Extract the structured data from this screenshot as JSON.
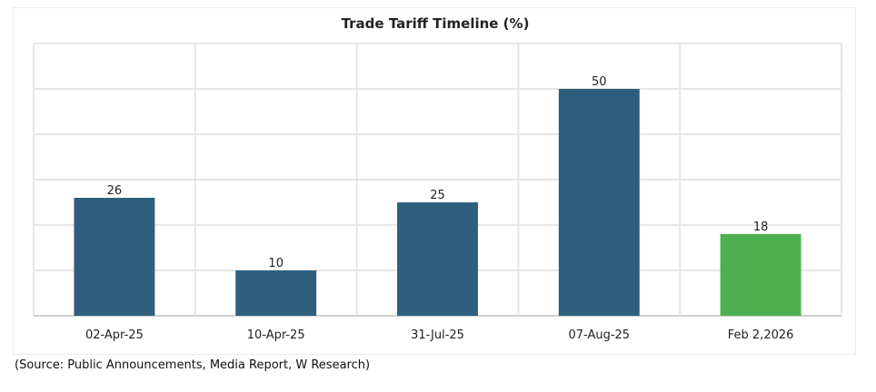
{
  "chart_data": {
    "type": "bar",
    "title": "Trade Tariff Timeline (%)",
    "categories": [
      "02-Apr-25",
      "10-Apr-25",
      "31-Jul-25",
      "07-Aug-25",
      "Feb 2,2026"
    ],
    "values": [
      26,
      10,
      25,
      50,
      18
    ],
    "bar_colors": [
      "#2e5f7f",
      "#2e5f7f",
      "#2e5f7f",
      "#2e5f7f",
      "#4caf50"
    ],
    "ylim": [
      0,
      60
    ],
    "grid": true,
    "legend": "none",
    "xlabel": "",
    "ylabel": ""
  },
  "source_note": "(Source: Public Announcements, Media Report, W Research)"
}
